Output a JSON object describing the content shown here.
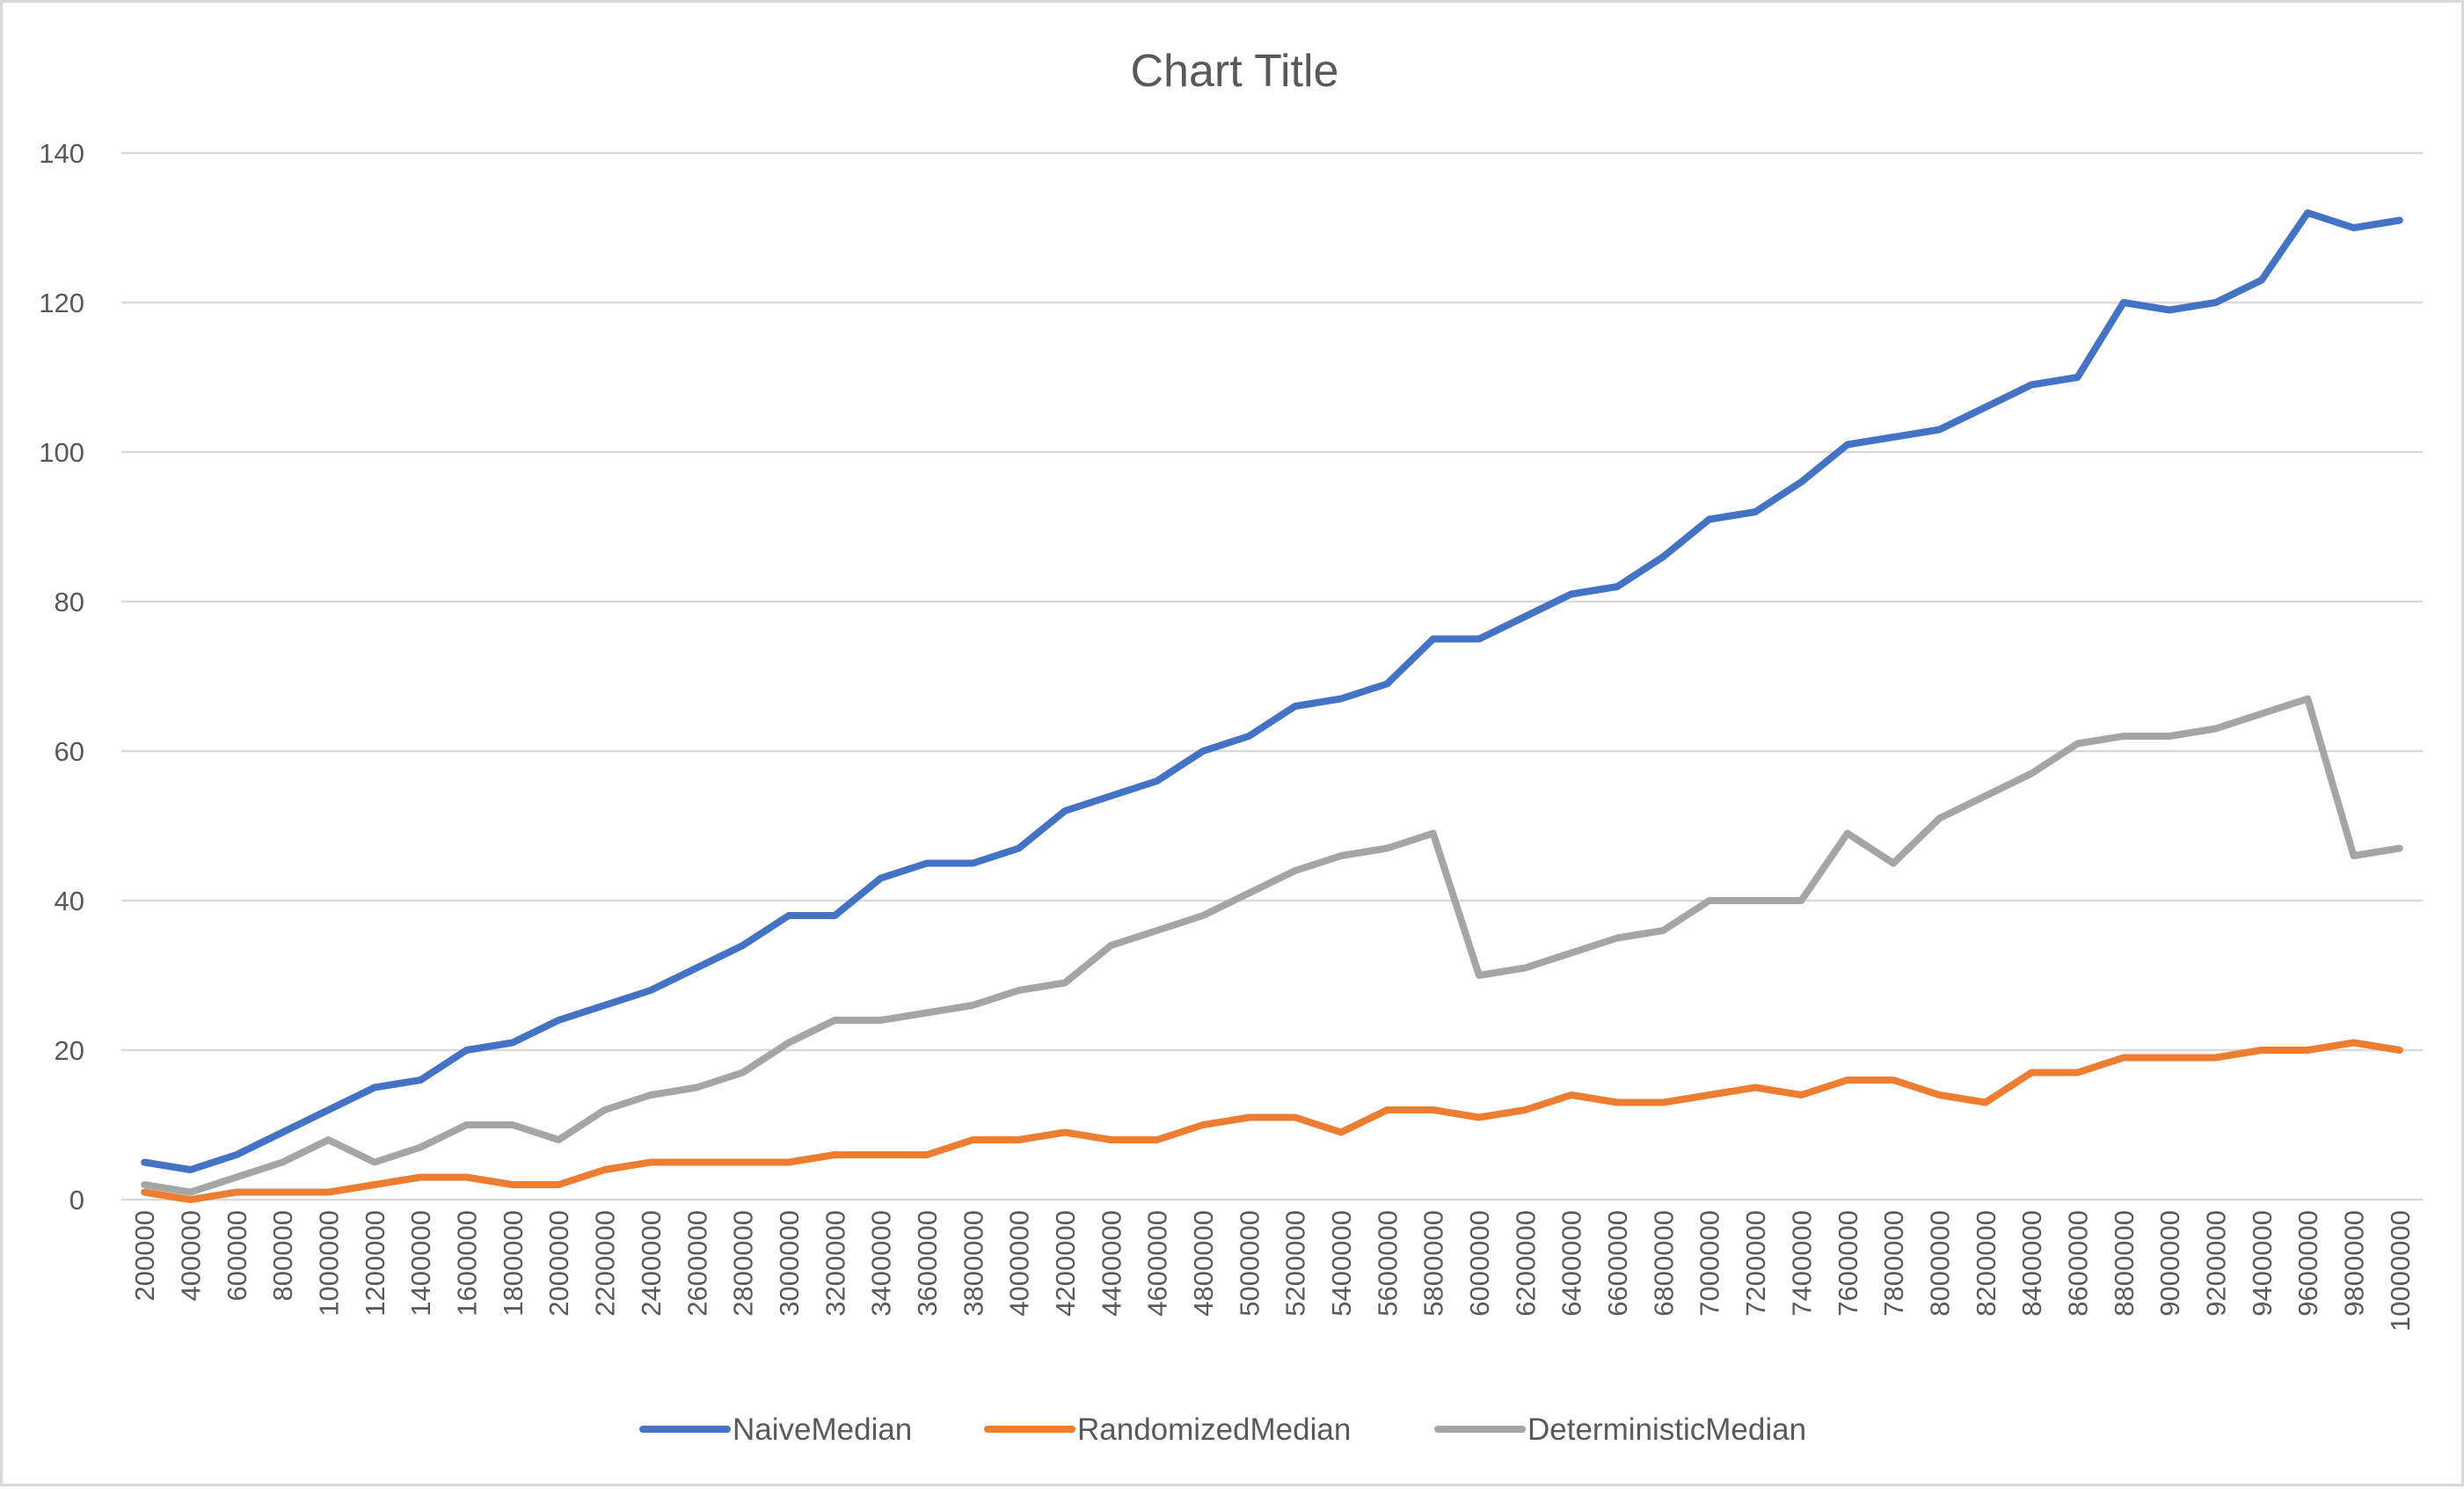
{
  "chart_data": {
    "type": "line",
    "title": "Chart Title",
    "xlabel": "",
    "ylabel": "",
    "ylim": [
      0,
      140
    ],
    "yticks": [
      0,
      20,
      40,
      60,
      80,
      100,
      120,
      140
    ],
    "grid": true,
    "legend_position": "bottom",
    "categories": [
      "200000",
      "400000",
      "600000",
      "800000",
      "1000000",
      "1200000",
      "1400000",
      "1600000",
      "1800000",
      "2000000",
      "2200000",
      "2400000",
      "2600000",
      "2800000",
      "3000000",
      "3200000",
      "3400000",
      "3600000",
      "3800000",
      "4000000",
      "4200000",
      "4400000",
      "4600000",
      "4800000",
      "5000000",
      "5200000",
      "5400000",
      "5600000",
      "5800000",
      "6000000",
      "6200000",
      "6400000",
      "6600000",
      "6800000",
      "7000000",
      "7200000",
      "7400000",
      "7600000",
      "7800000",
      "8000000",
      "8200000",
      "8400000",
      "8600000",
      "8800000",
      "9000000",
      "9200000",
      "9400000",
      "9600000",
      "9800000",
      "10000000"
    ],
    "series": [
      {
        "name": "NaiveMedian",
        "color": "#4472c4",
        "values": [
          5,
          4,
          6,
          9,
          12,
          15,
          16,
          20,
          21,
          24,
          26,
          28,
          31,
          34,
          38,
          38,
          43,
          45,
          45,
          47,
          52,
          54,
          56,
          60,
          62,
          66,
          67,
          69,
          75,
          75,
          78,
          81,
          82,
          86,
          91,
          92,
          96,
          101,
          102,
          103,
          106,
          109,
          110,
          120,
          119,
          120,
          123,
          132,
          130,
          131
        ]
      },
      {
        "name": "RandomizedMedian",
        "color": "#ed7d31",
        "values": [
          1,
          0,
          1,
          1,
          1,
          2,
          3,
          3,
          2,
          2,
          4,
          5,
          5,
          5,
          5,
          6,
          6,
          6,
          8,
          8,
          9,
          8,
          8,
          10,
          11,
          11,
          9,
          12,
          12,
          11,
          12,
          14,
          13,
          13,
          14,
          15,
          14,
          16,
          16,
          14,
          13,
          17,
          17,
          19,
          19,
          19,
          20,
          20,
          21,
          20
        ]
      },
      {
        "name": "DeterministicMedian",
        "color": "#a5a5a5",
        "values": [
          2,
          1,
          3,
          5,
          8,
          5,
          7,
          10,
          10,
          8,
          12,
          14,
          15,
          17,
          21,
          24,
          24,
          25,
          26,
          28,
          29,
          34,
          36,
          38,
          41,
          44,
          46,
          47,
          49,
          30,
          31,
          33,
          35,
          36,
          40,
          40,
          40,
          49,
          45,
          51,
          54,
          57,
          61,
          62,
          62,
          63,
          65,
          67,
          46,
          47
        ]
      }
    ]
  },
  "colors": {
    "grid": "#d9d9d9",
    "text": "#595959",
    "border": "#d9d9d9"
  }
}
